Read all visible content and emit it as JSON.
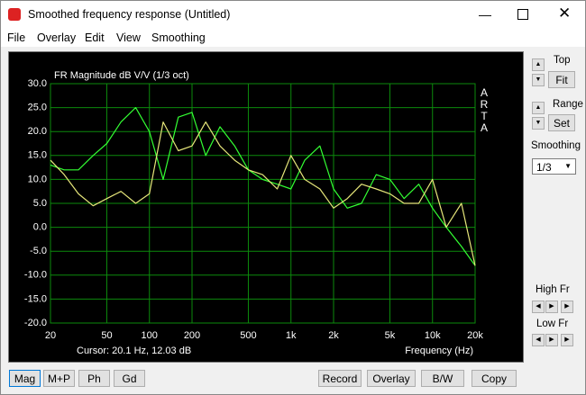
{
  "window": {
    "title": "Smoothed frequency response (Untitled)",
    "menu": [
      "File",
      "Overlay",
      "Edit",
      "View",
      "Smoothing"
    ]
  },
  "chart_data": {
    "type": "line",
    "title": "FR Magnitude dB V/V (1/3 oct)",
    "brand": "ARTA",
    "x_label": "Frequency (Hz)",
    "cursor_text": "Cursor: 20.1 Hz, 12.03 dB",
    "xscale": "log",
    "grid": true,
    "x": [
      20,
      25,
      31.5,
      40,
      50,
      63,
      80,
      100,
      125,
      160,
      200,
      250,
      315,
      400,
      500,
      630,
      800,
      1000,
      1250,
      1600,
      2000,
      2500,
      3150,
      4000,
      5000,
      6300,
      8000,
      10000,
      12500,
      16000,
      20000
    ],
    "series": [
      {
        "color": "#33ff33",
        "values": [
          13,
          12,
          12,
          15,
          17.5,
          22,
          25,
          20,
          10,
          23,
          24,
          15,
          21,
          17,
          12,
          10,
          9,
          8,
          14,
          17,
          8,
          4,
          5,
          11,
          10,
          6,
          9,
          4,
          0,
          -4,
          -8
        ]
      },
      {
        "color": "#e6e67a",
        "values": [
          14,
          11,
          7,
          4.5,
          6,
          7.5,
          5,
          7,
          22,
          16,
          17,
          22,
          17,
          14,
          12,
          11,
          8,
          15,
          10,
          8,
          4,
          6,
          9,
          8,
          7,
          5,
          5,
          10,
          0,
          5,
          -8
        ]
      }
    ],
    "xlim": [
      20,
      20000
    ],
    "xticks": [
      20,
      50,
      100,
      200,
      500,
      {
        "value": 1000,
        "label": "1k"
      },
      {
        "value": 2000,
        "label": "2k"
      },
      {
        "value": 5000,
        "label": "5k"
      },
      {
        "value": 10000,
        "label": "10k"
      },
      {
        "value": 20000,
        "label": "20k"
      }
    ],
    "ylim": [
      -20,
      30
    ],
    "yticks": [
      {
        "value": 30,
        "label": "30.0"
      },
      {
        "value": 25,
        "label": "25.0"
      },
      {
        "value": 20,
        "label": "20.0"
      },
      {
        "value": 15,
        "label": "15.0"
      },
      {
        "value": 10,
        "label": "10.0"
      },
      {
        "value": 5,
        "label": "5.0"
      },
      {
        "value": 0,
        "label": "0.0"
      },
      {
        "value": -5,
        "label": "-5.0"
      },
      {
        "value": -10,
        "label": "-10.0"
      },
      {
        "value": -15,
        "label": "-15.0"
      },
      {
        "value": -20,
        "label": "-20.0"
      }
    ]
  },
  "side_panel": {
    "top_label": "Top",
    "fit_button": "Fit",
    "range_label": "Range",
    "set_button": "Set",
    "smoothing_label": "Smoothing",
    "smoothing_value": "1/3",
    "high_fr_label": "High Fr",
    "low_fr_label": "Low Fr"
  },
  "bottom_buttons": {
    "left": [
      "Mag",
      "M+P",
      "Ph",
      "Gd"
    ],
    "right": [
      "Record",
      "Overlay",
      "B/W",
      "Copy"
    ]
  }
}
